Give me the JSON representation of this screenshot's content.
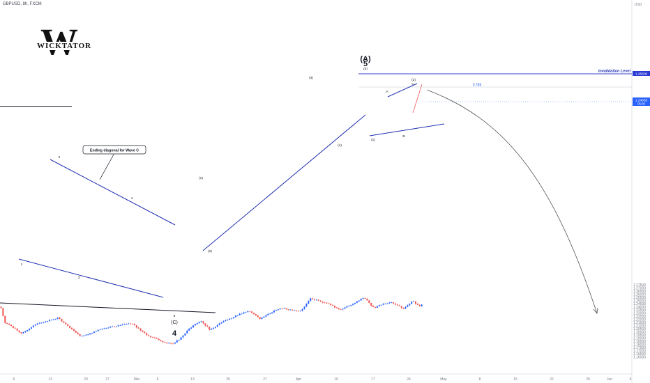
{
  "header": {
    "symbol_line": "GBPUSD, 8h, FXCM"
  },
  "logo": {
    "text": "WICKTATOR",
    "letter": "W"
  },
  "price_axis": {
    "currency": "USD",
    "labels": [
      "1.27500",
      "1.27000",
      "1.26500",
      "1.26000",
      "1.25500",
      "1.25000",
      "1.24500",
      "1.24000",
      "1.23500",
      "1.23000",
      "1.22500",
      "1.22000",
      "1.21500",
      "1.21000",
      "1.20500",
      "1.20000",
      "1.19500",
      "1.19000",
      "1.18500",
      "1.18000",
      "1.17500",
      "1.17000",
      "1.16500",
      "1.16000"
    ],
    "current_price": "1.24655",
    "current_time": "05:08",
    "invalidation_price": "1.25800"
  },
  "time_axis": {
    "labels": [
      "6",
      "13",
      "20",
      "27",
      "Mar",
      "6",
      "13",
      "20",
      "27",
      "Apr",
      "10",
      "17",
      "24",
      "May",
      "8",
      "15",
      "22",
      "29",
      "Jun",
      "6"
    ]
  },
  "chart_data": {
    "type": "candlestick",
    "symbol": "GBPUSD",
    "timeframe": "8h",
    "ylim": [
      1.1585,
      1.2775
    ],
    "colors": {
      "up": "#2962ff",
      "down": "#ef5350",
      "trendline": "#1f2fb0",
      "projection": "#555555"
    },
    "annotations": {
      "callout": "Ending diagonal for Wave C",
      "invalidation_label": "Invalidation Level",
      "fib_label": "0.786",
      "wave_labels": {
        "c1": "1",
        "c2": "2",
        "c3": "3",
        "c4": "4",
        "c5": "5",
        "cC": "(C)",
        "w4": "4",
        "i1": "(1)",
        "i2": "(2)",
        "i3": "(3)",
        "i4": "(4)",
        "i5": "(5)",
        "A_big": "(A)",
        "w5": "5",
        "s1": "(1)",
        "sA": "A",
        "sB": "B",
        "sC": "C",
        "s2": "(2)"
      }
    }
  }
}
